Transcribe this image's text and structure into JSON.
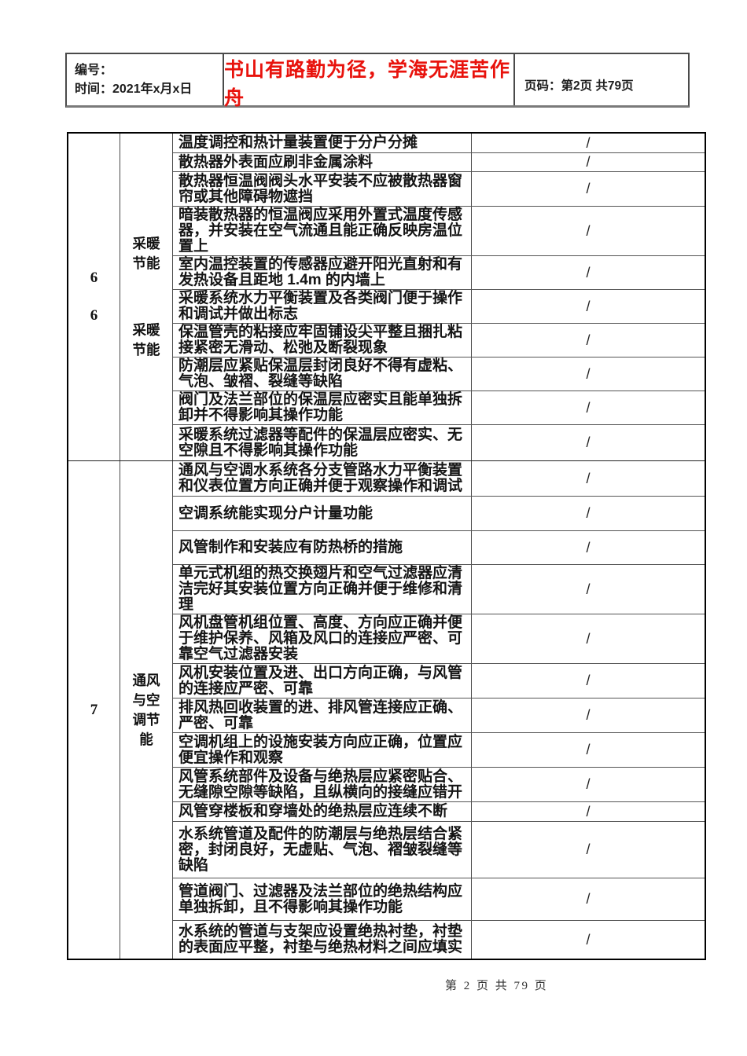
{
  "colors": {
    "motto_red": "#e8120c",
    "text_black": "#141414"
  },
  "header": {
    "number_label": "编号：",
    "time_label": "时间：2021年x月x日",
    "motto": "书山有路勤为径，学海无涯苦作舟",
    "page_label": "页码：第2页 共79页"
  },
  "table": {
    "sections": [
      {
        "numbers": [
          "6",
          "6"
        ],
        "categories": [
          "采暖\n节能",
          "采暖\n节能"
        ],
        "rows": [
          {
            "text": "温度调控和热计量装置便于分户分摊",
            "value": "/",
            "mh": 25
          },
          {
            "text": "散热器外表面应刷非金属涂料",
            "value": "/",
            "mh": 24
          },
          {
            "text": "散热器恒温阀阀头水平安装不应被散热器窗帘或其他障碍物遮挡",
            "value": "/",
            "mh": 44
          },
          {
            "text": "暗装散热器的恒温阀应采用外置式温度传感器，并安装在空气流通且能正确反映房温位置上",
            "value": "/",
            "mh": 63
          },
          {
            "text": "室内温控装置的传感器应避开阳光直射和有发热设备且距地 1.4m 的内墙上",
            "value": "/",
            "mh": 43
          },
          {
            "text": "采暖系统水力平衡装置及各类阀门便于操作和调试并做出标志",
            "value": "/",
            "mh": 43
          },
          {
            "text": "保温管壳的粘接应牢固铺设尖平整且捆扎粘接紧密无滑动、松弛及断裂现象",
            "value": "/",
            "mh": 43
          },
          {
            "text": "防潮层应紧贴保温层封闭良好不得有虚粘、气泡、皱褶、裂缝等缺陷",
            "value": "/",
            "mh": 43
          },
          {
            "text": "阀门及法兰部位的保温层应密实且能单独拆卸并不得影响其操作功能",
            "value": "/",
            "mh": 43
          },
          {
            "text": "采暖系统过滤器等配件的保温层应密实、无空隙且不得影响其操作功能",
            "value": "/",
            "mh": 45
          }
        ]
      },
      {
        "numbers": [
          "7"
        ],
        "categories": [
          "通风\n与空\n调节\n能"
        ],
        "rows": [
          {
            "text": "通风与空调水系统各分支管路水力平衡装置和仪表位置方向正确并便于观察操作和调试",
            "value": "/",
            "mh": 45
          },
          {
            "text": "空调系统能实现分户计量功能",
            "value": "/",
            "mh": 44
          },
          {
            "text": "风管制作和安装应有防热桥的措施",
            "value": "/",
            "mh": 43
          },
          {
            "text": "单元式机组的热交换翅片和空气过滤器应清洁完好其安装位置方向正确并便于维修和清理",
            "value": "/",
            "mh": 63
          },
          {
            "text": "风机盘管机组位置、高度、方向应正确并便于维护保养、风箱及风口的连接应严密、可靠空气过滤器安装",
            "value": "/",
            "mh": 63
          },
          {
            "text": "风机安装位置及进、出口方向正确，与风管的连接应严密、可靠",
            "value": "/",
            "mh": 44
          },
          {
            "text": "排风热回收装置的进、排风管连接应正确、严密、可靠",
            "value": "/",
            "mh": 44
          },
          {
            "text": "空调机组上的设施安装方向应正确，位置应便宜操作和观察",
            "value": "/",
            "mh": 44
          },
          {
            "text": "风管系统部件及设备与绝热层应紧密贴合、无缝隙空隙等缺陷，且纵横向的接缝应错开",
            "value": "/",
            "mh": 44
          },
          {
            "text": "风管穿楼板和穿墙处的绝热层应连续不断",
            "value": "/",
            "mh": 25
          },
          {
            "text": "水系统管道及配件的防潮层与绝热层结合紧密，封闭良好，无虚贴、气泡、褶皱裂缝等缺陷",
            "value": "/",
            "mh": 72
          },
          {
            "text": "管道阀门、过滤器及法兰部位的绝热结构应单独拆卸，且不得影响其操作功能",
            "value": "/",
            "mh": 54
          },
          {
            "text": "水系统的管道与支架应设置绝热衬垫，衬垫的表面应平整，衬垫与绝热材料之间应填实",
            "value": "/",
            "mh": 48
          }
        ]
      }
    ]
  },
  "footer": {
    "page_info": "第 2 页 共 79 页"
  }
}
